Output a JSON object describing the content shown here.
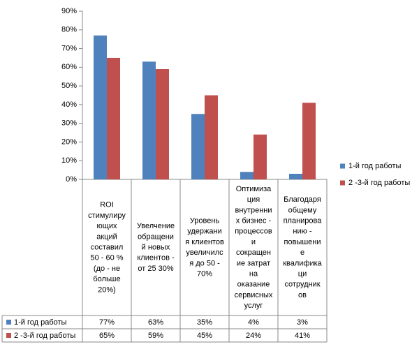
{
  "chart_data": {
    "type": "bar",
    "categories": [
      "ROI\nстимулиру\nющих\nакций\nсоставил\n50 - 60 %\n(до - не\nбольше\n20%)",
      "Увелчение\nобращени\nй новых\nклиентов -\nот 25 30%",
      "Уровень\nудержани\nя клиентов\nувеличилс\nя до 50 -\n70%",
      "Оптимиза\nция\nвнутренни\nх бизнес -\nпроцессов\nи\nсокращен\nие затрат\nна\nоказание\nсервисных\nуслуг",
      "Благодаря\nобщему\nпланирова\nнию -\nповышени\nе\nквалифика\nци\nсотрудник\nов"
    ],
    "series": [
      {
        "name": "1-й год работы",
        "color": "#4f81bd",
        "values": [
          77,
          63,
          35,
          4,
          3
        ],
        "value_labels": [
          "77%",
          "63%",
          "35%",
          "4%",
          "3%"
        ]
      },
      {
        "name": "2 -3-й год работы",
        "color": "#c0504d",
        "values": [
          65,
          59,
          45,
          24,
          41
        ],
        "value_labels": [
          "65%",
          "59%",
          "45%",
          "24%",
          "41%"
        ]
      }
    ],
    "ylim": [
      0,
      90
    ],
    "yticks": [
      {
        "value": 0,
        "label": "0%"
      },
      {
        "value": 10,
        "label": "10%"
      },
      {
        "value": 20,
        "label": "20%"
      },
      {
        "value": 30,
        "label": "30%"
      },
      {
        "value": 40,
        "label": "40%"
      },
      {
        "value": 50,
        "label": "50%"
      },
      {
        "value": 60,
        "label": "60%"
      },
      {
        "value": 70,
        "label": "70%"
      },
      {
        "value": 80,
        "label": "80%"
      },
      {
        "value": 90,
        "label": "90%"
      }
    ],
    "grid": false,
    "legend": "right"
  }
}
